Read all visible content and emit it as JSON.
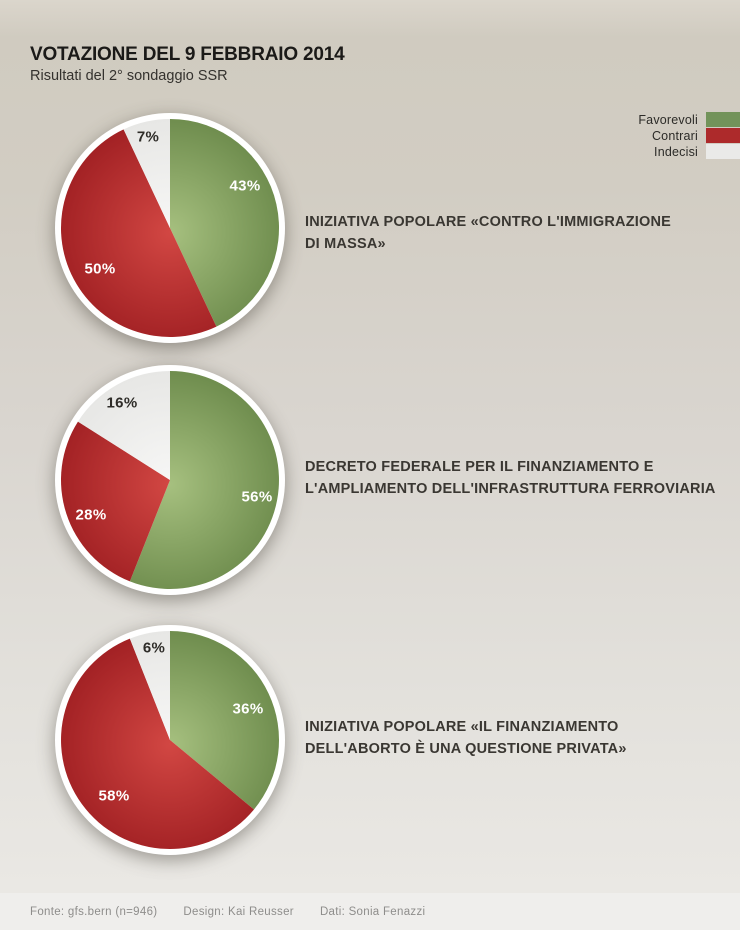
{
  "header": {
    "title": "VOTAZIONE DEL 9 FEBBRAIO 2014",
    "subtitle": "Risultati del 2° sondaggio SSR"
  },
  "legend": [
    {
      "label": "Favorevoli",
      "color": "#72935a"
    },
    {
      "label": "Contrari",
      "color": "#ad2a2b"
    },
    {
      "label": "Indecisi",
      "color": "#eaeae8"
    }
  ],
  "chart_data": [
    {
      "type": "pie",
      "title": "INIZIATIVA POPOLARE «CONTRO L'IMMIGRAZIONE DI MASSA»",
      "title_lines": [
        "INIZIATIVA POPOLARE «CONTRO L'IMMIGRAZIONE",
        "DI MASSA»"
      ],
      "categories": [
        "Favorevoli",
        "Contrari",
        "Indecisi"
      ],
      "values": [
        43,
        50,
        7
      ],
      "labels": [
        "43%",
        "50%",
        "7%"
      ]
    },
    {
      "type": "pie",
      "title": "DECRETO FEDERALE PER IL FINANZIAMENTO E L'AMPLIAMENTO DELL'INFRASTRUTTURA FERROVIARIA",
      "title_lines": [
        "DECRETO FEDERALE PER IL FINANZIAMENTO E",
        "L'AMPLIAMENTO DELL'INFRASTRUTTURA FERROVIARIA"
      ],
      "categories": [
        "Favorevoli",
        "Contrari",
        "Indecisi"
      ],
      "values": [
        56,
        28,
        16
      ],
      "labels": [
        "56%",
        "28%",
        "16%"
      ]
    },
    {
      "type": "pie",
      "title": "INIZIATIVA POPOLARE «IL FINANZIAMENTO DELL'ABORTO È UNA QUESTIONE PRIVATA»",
      "title_lines": [
        "INIZIATIVA POPOLARE «IL FINANZIAMENTO",
        "DELL'ABORTO È UNA QUESTIONE PRIVATA»"
      ],
      "categories": [
        "Favorevoli",
        "Contrari",
        "Indecisi"
      ],
      "values": [
        36,
        58,
        6
      ],
      "labels": [
        "36%",
        "58%",
        "6%"
      ]
    }
  ],
  "pie_style": {
    "ring_color": "#ffffff",
    "slice_gradients": [
      {
        "from": "#a6c07f",
        "to": "#6f8d4e"
      },
      {
        "from": "#d24743",
        "to": "#a22124"
      },
      {
        "from": "#f7f7f6",
        "to": "#e7e7e5"
      }
    ]
  },
  "footer": {
    "items": [
      "Fonte: gfs.bern (n=946)",
      "Design: Kai Reusser",
      "Dati: Sonia Fenazzi"
    ]
  }
}
